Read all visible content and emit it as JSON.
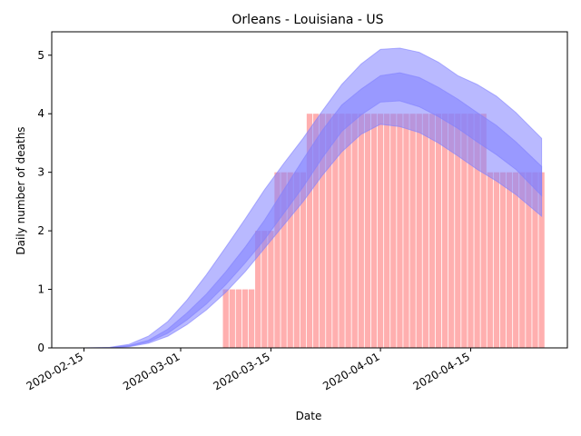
{
  "chart_data": {
    "type": "bar",
    "title": "Orleans - Louisiana - US",
    "xlabel": "Date",
    "ylabel": "Daily number of deaths",
    "x_range": [
      "2020-02-10",
      "2020-04-30"
    ],
    "ylim": [
      0,
      5.4
    ],
    "x_tick_labels": [
      "2020-02-15",
      "2020-03-01",
      "2020-03-15",
      "2020-04-01",
      "2020-04-15"
    ],
    "y_tick_labels": [
      "0",
      "1",
      "2",
      "3",
      "4",
      "5"
    ],
    "grid": false,
    "legend": "none",
    "colors": {
      "bars": "#ff9999",
      "band": "#8080ff"
    },
    "bars": {
      "dates": [
        "2020-03-08",
        "2020-03-09",
        "2020-03-10",
        "2020-03-11",
        "2020-03-12",
        "2020-03-13",
        "2020-03-14",
        "2020-03-15",
        "2020-03-16",
        "2020-03-17",
        "2020-03-18",
        "2020-03-19",
        "2020-03-20",
        "2020-03-21",
        "2020-03-22",
        "2020-03-23",
        "2020-03-24",
        "2020-03-25",
        "2020-03-26",
        "2020-03-27",
        "2020-03-28",
        "2020-03-29",
        "2020-03-30",
        "2020-03-31",
        "2020-04-01",
        "2020-04-02",
        "2020-04-03",
        "2020-04-04",
        "2020-04-05",
        "2020-04-06",
        "2020-04-07",
        "2020-04-08",
        "2020-04-09",
        "2020-04-10",
        "2020-04-11",
        "2020-04-12",
        "2020-04-13",
        "2020-04-14",
        "2020-04-15",
        "2020-04-16",
        "2020-04-17",
        "2020-04-18",
        "2020-04-19",
        "2020-04-20",
        "2020-04-21",
        "2020-04-22",
        "2020-04-23",
        "2020-04-24",
        "2020-04-25",
        "2020-04-26"
      ],
      "values": [
        1,
        1,
        1,
        1,
        1,
        2,
        2,
        2,
        3,
        3,
        3,
        3,
        3,
        4,
        4,
        4,
        4,
        4,
        4,
        4,
        4,
        4,
        4,
        4,
        4,
        4,
        4,
        4,
        4,
        4,
        4,
        4,
        4,
        4,
        4,
        4,
        4,
        4,
        4,
        4,
        4,
        3,
        3,
        3,
        3,
        3,
        3,
        3,
        3,
        3
      ]
    },
    "series": [
      {
        "dates": [
          "2020-02-15",
          "2020-02-19",
          "2020-02-22",
          "2020-02-25",
          "2020-02-28",
          "2020-03-02",
          "2020-03-05",
          "2020-03-08",
          "2020-03-11",
          "2020-03-14",
          "2020-03-17",
          "2020-03-20",
          "2020-03-23",
          "2020-03-26",
          "2020-03-29",
          "2020-04-01",
          "2020-04-04",
          "2020-04-07",
          "2020-04-10",
          "2020-04-13",
          "2020-04-16",
          "2020-04-19",
          "2020-04-22",
          "2020-04-26"
        ],
        "lower_outer": [
          0,
          0,
          0.02,
          0.08,
          0.2,
          0.4,
          0.65,
          0.95,
          1.3,
          1.7,
          2.1,
          2.5,
          2.95,
          3.35,
          3.65,
          3.82,
          3.78,
          3.68,
          3.5,
          3.28,
          3.05,
          2.85,
          2.62,
          2.25
        ],
        "lower_inner": [
          0,
          0,
          0.03,
          0.1,
          0.25,
          0.48,
          0.75,
          1.08,
          1.45,
          1.85,
          2.3,
          2.75,
          3.25,
          3.7,
          3.98,
          4.2,
          4.22,
          4.12,
          3.95,
          3.75,
          3.52,
          3.3,
          3.05,
          2.6
        ],
        "upper_inner": [
          0,
          0,
          0.04,
          0.13,
          0.32,
          0.6,
          0.92,
          1.3,
          1.72,
          2.18,
          2.7,
          3.22,
          3.72,
          4.15,
          4.42,
          4.65,
          4.7,
          4.62,
          4.45,
          4.25,
          4.02,
          3.8,
          3.52,
          3.1
        ],
        "upper_outer": [
          0,
          0.01,
          0.06,
          0.2,
          0.45,
          0.82,
          1.25,
          1.72,
          2.2,
          2.7,
          3.15,
          3.58,
          4.05,
          4.5,
          4.85,
          5.1,
          5.12,
          5.05,
          4.88,
          4.65,
          4.5,
          4.3,
          4.02,
          3.58
        ]
      }
    ]
  }
}
